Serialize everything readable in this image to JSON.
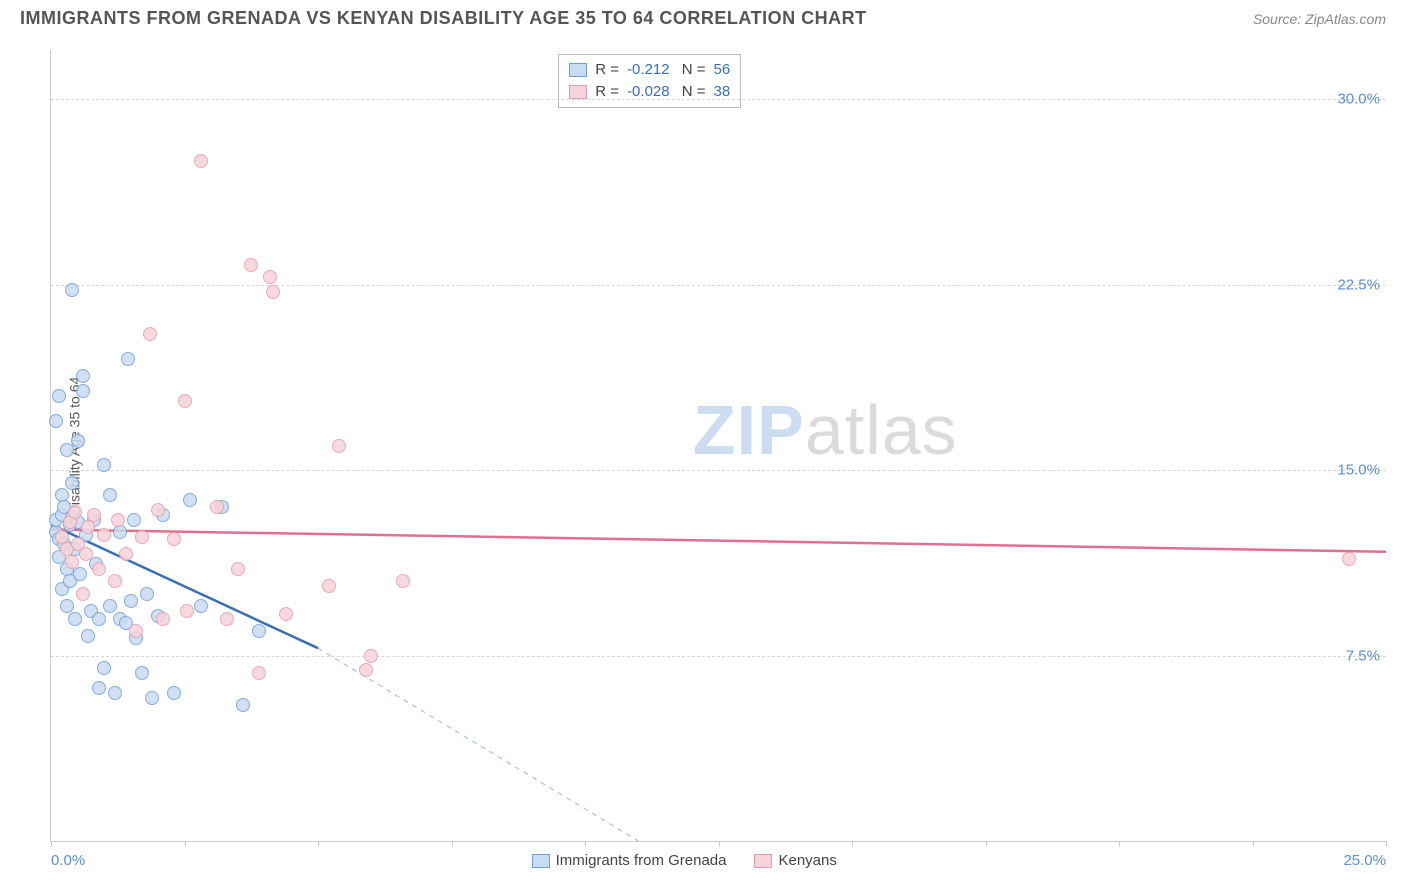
{
  "header": {
    "title": "IMMIGRANTS FROM GRENADA VS KENYAN DISABILITY AGE 35 TO 64 CORRELATION CHART",
    "source": "Source: ZipAtlas.com"
  },
  "chart": {
    "type": "scatter",
    "y_axis_title": "Disability Age 35 to 64",
    "watermark": {
      "bold": "ZIP",
      "rest": "atlas"
    },
    "xlim": [
      0,
      25
    ],
    "ylim": [
      0,
      32
    ],
    "x_ticks": [
      0,
      2.5,
      5,
      7.5,
      10,
      12.5,
      15,
      17.5,
      20,
      22.5,
      25
    ],
    "x_tick_labels": {
      "min": "0.0%",
      "max": "25.0%"
    },
    "y_gridlines": [
      7.5,
      15.0,
      22.5,
      30.0
    ],
    "y_tick_labels": [
      "7.5%",
      "15.0%",
      "22.5%",
      "30.0%"
    ],
    "background_color": "#ffffff",
    "grid_color": "#d8d8d8",
    "axis_color": "#cccccc",
    "tick_label_color": "#5b8fd6",
    "marker_radius": 7,
    "marker_border_width": 1.5,
    "series": [
      {
        "name": "Immigrants from Grenada",
        "fill": "#c9dcf2",
        "stroke": "#6f9fd8",
        "line_color": "#3b6fb5",
        "line_width": 2.5,
        "dash_color": "#a9c1e0",
        "R": "-0.212",
        "N": "56",
        "regression": {
          "x1": 0,
          "y1": 12.8,
          "x2": 5.0,
          "y2": 7.8,
          "dash_to_x": 11.0,
          "dash_to_y": 0
        },
        "points": [
          [
            0.1,
            12.5
          ],
          [
            0.1,
            13.0
          ],
          [
            0.15,
            12.2
          ],
          [
            0.15,
            11.5
          ],
          [
            0.2,
            13.2
          ],
          [
            0.2,
            10.2
          ],
          [
            0.2,
            14.0
          ],
          [
            0.25,
            12.0
          ],
          [
            0.25,
            13.5
          ],
          [
            0.3,
            11.0
          ],
          [
            0.3,
            9.5
          ],
          [
            0.3,
            15.8
          ],
          [
            0.35,
            12.8
          ],
          [
            0.35,
            10.5
          ],
          [
            0.4,
            13.1
          ],
          [
            0.4,
            14.5
          ],
          [
            0.45,
            11.8
          ],
          [
            0.45,
            9.0
          ],
          [
            0.5,
            12.9
          ],
          [
            0.5,
            16.2
          ],
          [
            0.55,
            10.8
          ],
          [
            0.6,
            18.2
          ],
          [
            0.6,
            18.8
          ],
          [
            0.65,
            12.4
          ],
          [
            0.7,
            8.3
          ],
          [
            0.75,
            9.3
          ],
          [
            0.8,
            13.0
          ],
          [
            0.85,
            11.2
          ],
          [
            0.9,
            6.2
          ],
          [
            0.9,
            9.0
          ],
          [
            1.0,
            7.0
          ],
          [
            1.0,
            15.2
          ],
          [
            1.1,
            9.5
          ],
          [
            1.1,
            14.0
          ],
          [
            1.2,
            6.0
          ],
          [
            1.3,
            9.0
          ],
          [
            1.3,
            12.5
          ],
          [
            1.4,
            8.8
          ],
          [
            1.45,
            19.5
          ],
          [
            1.5,
            9.7
          ],
          [
            1.55,
            13.0
          ],
          [
            1.6,
            8.2
          ],
          [
            1.7,
            6.8
          ],
          [
            1.8,
            10.0
          ],
          [
            1.9,
            5.8
          ],
          [
            2.0,
            9.1
          ],
          [
            2.1,
            13.2
          ],
          [
            2.3,
            6.0
          ],
          [
            2.6,
            13.8
          ],
          [
            2.8,
            9.5
          ],
          [
            0.4,
            22.3
          ],
          [
            0.15,
            18.0
          ],
          [
            0.1,
            17.0
          ],
          [
            3.2,
            13.5
          ],
          [
            3.6,
            5.5
          ],
          [
            3.9,
            8.5
          ]
        ]
      },
      {
        "name": "Kenyans",
        "fill": "#f6d4db",
        "stroke": "#e89bae",
        "line_color": "#e36f8e",
        "line_width": 2.5,
        "R": "-0.028",
        "N": "38",
        "regression": {
          "x1": 0,
          "y1": 12.6,
          "x2": 25,
          "y2": 11.7
        },
        "points": [
          [
            0.2,
            12.3
          ],
          [
            0.3,
            11.8
          ],
          [
            0.35,
            12.9
          ],
          [
            0.4,
            11.3
          ],
          [
            0.45,
            13.3
          ],
          [
            0.5,
            12.0
          ],
          [
            0.6,
            10.0
          ],
          [
            0.65,
            11.6
          ],
          [
            0.7,
            12.7
          ],
          [
            0.8,
            13.2
          ],
          [
            0.9,
            11.0
          ],
          [
            1.0,
            12.4
          ],
          [
            1.2,
            10.5
          ],
          [
            1.25,
            13.0
          ],
          [
            1.4,
            11.6
          ],
          [
            1.6,
            8.5
          ],
          [
            1.7,
            12.3
          ],
          [
            1.85,
            20.5
          ],
          [
            2.0,
            13.4
          ],
          [
            2.1,
            9.0
          ],
          [
            2.3,
            12.2
          ],
          [
            2.5,
            17.8
          ],
          [
            2.55,
            9.3
          ],
          [
            2.8,
            27.5
          ],
          [
            3.1,
            13.5
          ],
          [
            3.3,
            9.0
          ],
          [
            3.5,
            11.0
          ],
          [
            3.75,
            23.3
          ],
          [
            3.9,
            6.8
          ],
          [
            4.1,
            22.8
          ],
          [
            4.15,
            22.2
          ],
          [
            4.4,
            9.2
          ],
          [
            5.2,
            10.3
          ],
          [
            5.4,
            16.0
          ],
          [
            5.9,
            6.9
          ],
          [
            6.6,
            10.5
          ],
          [
            6.0,
            7.5
          ],
          [
            24.3,
            11.4
          ]
        ]
      }
    ],
    "bottom_legend": [
      {
        "label": "Immigrants from Grenada",
        "fill": "#c9dcf2",
        "stroke": "#6f9fd8"
      },
      {
        "label": "Kenyans",
        "fill": "#f6d4db",
        "stroke": "#e89bae"
      }
    ]
  }
}
